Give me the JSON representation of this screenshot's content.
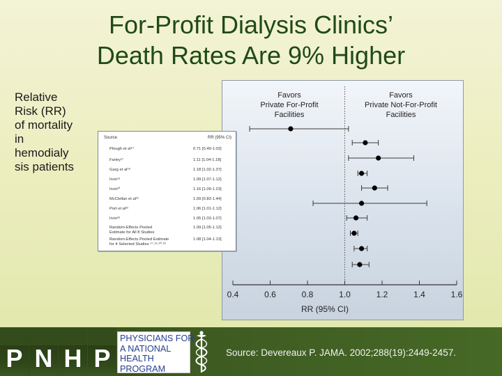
{
  "title": {
    "line1": "For-Profit Dialysis Clinics’",
    "line2": "Death Rates Are 9% Higher"
  },
  "side_note": "Relative\nRisk (RR)\nof mortality\nin\nhemodialy\nsis patients",
  "inset": {
    "col_source": "Source",
    "col_ci": "RR (95% CI)",
    "rows": [
      {
        "source": "Plough et al¹⁴",
        "ci": "0.71 [0.49-1.02]"
      },
      {
        "source": "Farley¹⁷",
        "ci": "1.11 [1.04-1.18]"
      },
      {
        "source": "Garg et al¹⁸",
        "ci": "1.18 [1.02-1.37]"
      },
      {
        "source": "Irvin¹⁹",
        "ci": "1.09 [1.07-1.12]"
      },
      {
        "source": "Irvin²⁰",
        "ci": "1.16 [1.09-1.23]"
      },
      {
        "source": "McClellan et al²¹",
        "ci": "1.09 [0.83-1.44]"
      },
      {
        "source": "Port et al²²",
        "ci": "1.06 [1.01-1.12]"
      },
      {
        "source": "Irvin²³",
        "ci": "1.05 [1.03-1.07]"
      },
      {
        "source": "Random-Effects Pooled\nEstimate for All 8 Studies",
        "ci": "1.09 [1.05-1.12]"
      },
      {
        "source": "Random-Effects Pooled Estimate\nfor 4 Selected Studies ¹⁷·¹⁹·²⁰·²²",
        "ci": "1.08 [1.04-1.13]"
      }
    ]
  },
  "chart_data": {
    "type": "scatter",
    "subtype": "forest-plot",
    "favors_left": "Favors\nPrivate For-Profit\nFacilities",
    "favors_right": "Favors\nPrivate Not-For-Profit\nFacilities",
    "xlabel": "RR (95% CI)",
    "xlim": [
      0.4,
      1.6
    ],
    "xticks": [
      "0.4",
      "0.6",
      "0.8",
      "1.0",
      "1.2",
      "1.4",
      "1.6"
    ],
    "reference_line": 1.0,
    "points": [
      {
        "rr": 0.71,
        "lo": 0.49,
        "hi": 1.02
      },
      {
        "rr": 1.11,
        "lo": 1.04,
        "hi": 1.18
      },
      {
        "rr": 1.18,
        "lo": 1.02,
        "hi": 1.37
      },
      {
        "rr": 1.09,
        "lo": 1.07,
        "hi": 1.12
      },
      {
        "rr": 1.16,
        "lo": 1.09,
        "hi": 1.23
      },
      {
        "rr": 1.09,
        "lo": 0.83,
        "hi": 1.44
      },
      {
        "rr": 1.06,
        "lo": 1.01,
        "hi": 1.12
      },
      {
        "rr": 1.05,
        "lo": 1.03,
        "hi": 1.07
      },
      {
        "rr": 1.09,
        "lo": 1.05,
        "hi": 1.12
      },
      {
        "rr": 1.08,
        "lo": 1.04,
        "hi": 1.13
      }
    ]
  },
  "footer": {
    "logo_letters": [
      "P",
      "N",
      "H",
      "P"
    ],
    "org_lines": [
      "PHYSICIANS FOR",
      "A NATIONAL",
      "HEALTH",
      "PROGRAM"
    ],
    "source": "Source: Devereaux P. JAMA. 2002;288(19):2449-2457."
  }
}
